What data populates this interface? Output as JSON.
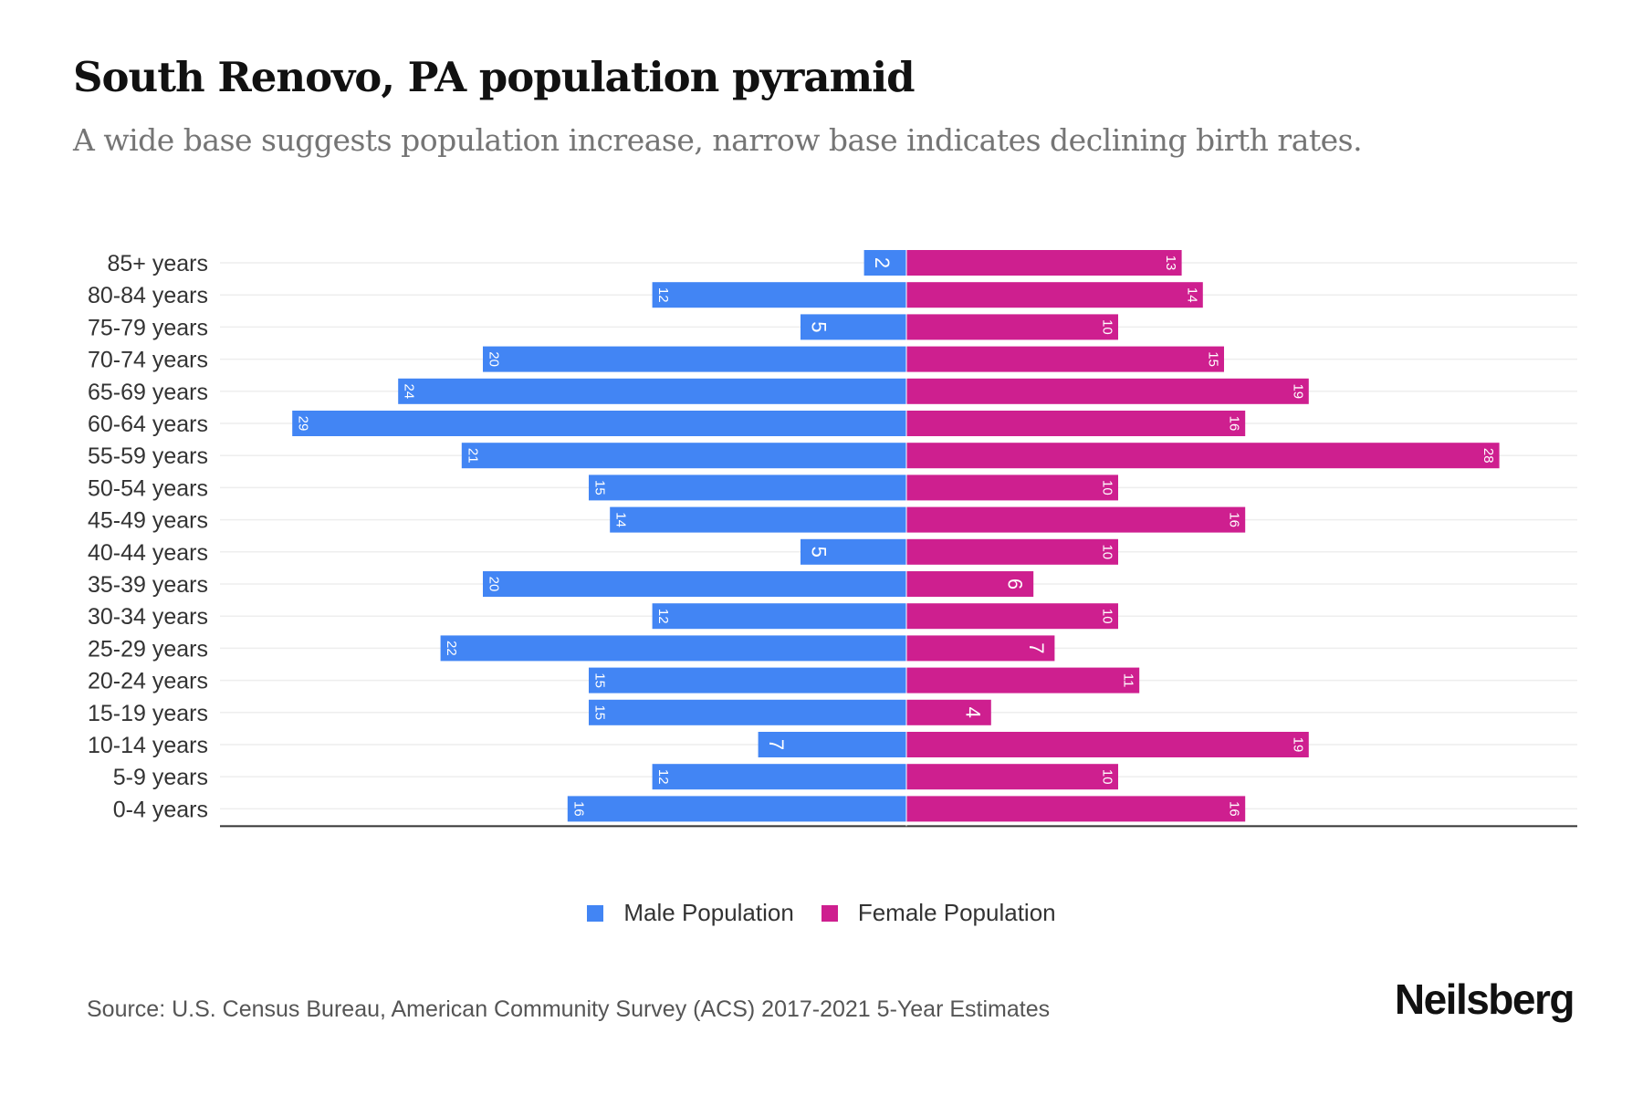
{
  "header": {
    "title": "South Renovo, PA population pyramid",
    "subtitle": "A wide base suggests population increase, narrow base indicates declining birth rates."
  },
  "footer": {
    "source": "Source: U.S. Census Bureau, American Community Survey (ACS) 2017-2021 5-Year Estimates",
    "brand": "Neilsberg"
  },
  "colors": {
    "male": "#4285F4",
    "female": "#CE1F8F",
    "grid": "#EEEEEE",
    "axis": "#333333",
    "label": "#333333"
  },
  "chart_data": {
    "type": "bar",
    "orientation": "horizontal-pyramid",
    "title": "South Renovo, PA population pyramid",
    "subtitle": "A wide base suggests population increase, narrow base indicates declining birth rates.",
    "xlabel": "",
    "ylabel": "",
    "categories": [
      "85+ years",
      "80-84 years",
      "75-79 years",
      "70-74 years",
      "65-69 years",
      "60-64 years",
      "55-59 years",
      "50-54 years",
      "45-49 years",
      "40-44 years",
      "35-39 years",
      "30-34 years",
      "25-29 years",
      "20-24 years",
      "15-19 years",
      "10-14 years",
      "5-9 years",
      "0-4 years"
    ],
    "series": [
      {
        "name": "Male Population",
        "side": "left",
        "values": [
          2,
          12,
          5,
          20,
          24,
          29,
          21,
          15,
          14,
          5,
          20,
          12,
          22,
          15,
          15,
          7,
          12,
          16
        ]
      },
      {
        "name": "Female Population",
        "side": "right",
        "values": [
          13,
          14,
          10,
          15,
          19,
          16,
          28,
          10,
          16,
          10,
          6,
          10,
          7,
          11,
          4,
          19,
          10,
          16
        ]
      }
    ],
    "xlim": [
      -32,
      32
    ],
    "grid": true,
    "data_labels": true,
    "legend": {
      "position": "bottom-center",
      "entries": [
        "Male Population",
        "Female Population"
      ]
    }
  }
}
